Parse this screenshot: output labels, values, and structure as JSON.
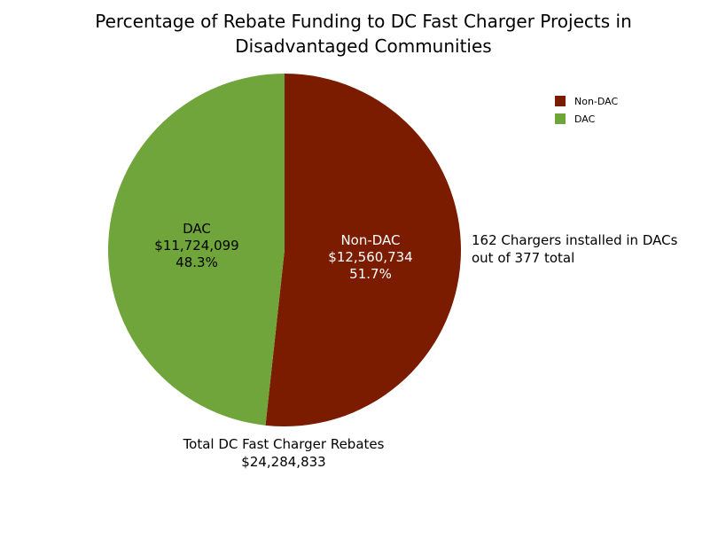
{
  "title": {
    "line1": "Percentage of Rebate Funding to DC Fast Charger Projects in",
    "line2": "Disadvantaged Communities"
  },
  "chart_data": {
    "type": "pie",
    "title": "Percentage of Rebate Funding to DC Fast Charger Projects in Disadvantaged Communities",
    "categories": [
      "Non-DAC",
      "DAC"
    ],
    "values": [
      12560734,
      11724099
    ],
    "percents": [
      51.7,
      48.3
    ],
    "colors": [
      "#7B1C00",
      "#6FA53A"
    ],
    "legend_position": "top-right",
    "slices": [
      {
        "name": "Non-DAC",
        "amount": "$12,560,734",
        "percent": "51.7%"
      },
      {
        "name": "DAC",
        "amount": "$11,724,099",
        "percent": "48.3%"
      }
    ],
    "legend": [
      "Non-DAC",
      "DAC"
    ],
    "annotations": {
      "chargers_line1": "162 Chargers installed in DACs",
      "chargers_line2": "out of 377 total",
      "total_line1": "Total DC Fast Charger Rebates",
      "total_line2": "$24,284,833"
    }
  }
}
